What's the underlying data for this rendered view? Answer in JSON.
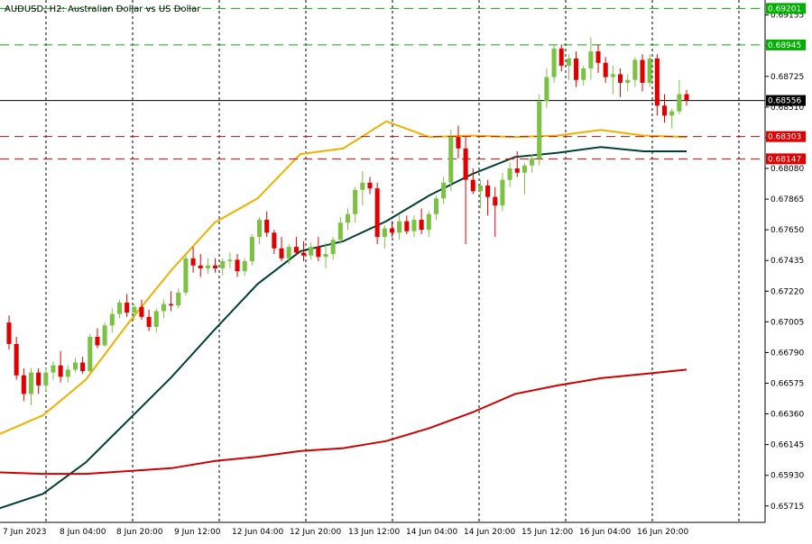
{
  "chart_data": {
    "type": "candlestick",
    "title": "AUDUSD, H2:  Australian Dollar vs US Dollar",
    "ylim": [
      0.656,
      0.6926
    ],
    "y_ticks": [
      "0.69155",
      "0.68940",
      "0.68725",
      "0.68510",
      "0.68295",
      "0.68080",
      "0.67865",
      "0.67650",
      "0.67435",
      "0.67220",
      "0.67005",
      "0.66790",
      "0.66575",
      "0.66360",
      "0.66145",
      "0.65930",
      "0.65715"
    ],
    "x_labels": [
      "7 Jun 2023",
      "8 Jun 04:00",
      "8 Jun 20:00",
      "9 Jun 12:00",
      "12 Jun 04:00",
      "12 Jun 20:00",
      "13 Jun 12:00",
      "14 Jun 04:00",
      "14 Jun 20:00",
      "15 Jun 12:00",
      "16 Jun 04:00",
      "16 Jun 20:00"
    ],
    "horizontal_lines": [
      {
        "value": 0.69201,
        "label": "0.69201",
        "color": "#00b000",
        "style": "dashed"
      },
      {
        "value": 0.68945,
        "label": "0.68945",
        "color": "#00b000",
        "style": "dashed"
      },
      {
        "value": 0.68556,
        "label": "0.68556",
        "color": "#000000",
        "style": "solid"
      },
      {
        "value": 0.68303,
        "label": "0.68303",
        "color": "#e00000",
        "style": "dashed"
      },
      {
        "value": 0.68147,
        "label": "0.68147",
        "color": "#e00000",
        "style": "dashed"
      }
    ],
    "candles": [
      [
        0.67,
        0.6705,
        0.6681,
        0.6685
      ],
      [
        0.6685,
        0.669,
        0.666,
        0.6663
      ],
      [
        0.6663,
        0.6668,
        0.6645,
        0.665
      ],
      [
        0.665,
        0.6668,
        0.6642,
        0.6665
      ],
      [
        0.6665,
        0.6668,
        0.665,
        0.6656
      ],
      [
        0.6656,
        0.6668,
        0.6652,
        0.6665
      ],
      [
        0.6665,
        0.6673,
        0.666,
        0.667
      ],
      [
        0.667,
        0.668,
        0.6658,
        0.6662
      ],
      [
        0.6662,
        0.667,
        0.6658,
        0.6667
      ],
      [
        0.6667,
        0.6675,
        0.6665,
        0.6672
      ],
      [
        0.6672,
        0.6676,
        0.6664,
        0.6666
      ],
      [
        0.6666,
        0.6692,
        0.6665,
        0.669
      ],
      [
        0.669,
        0.6696,
        0.6682,
        0.6684
      ],
      [
        0.6684,
        0.67,
        0.6683,
        0.6698
      ],
      [
        0.6698,
        0.671,
        0.6693,
        0.6706
      ],
      [
        0.6706,
        0.6716,
        0.6703,
        0.6714
      ],
      [
        0.6714,
        0.672,
        0.6704,
        0.6707
      ],
      [
        0.6707,
        0.6713,
        0.6702,
        0.6711
      ],
      [
        0.6711,
        0.6716,
        0.6702,
        0.6704
      ],
      [
        0.6704,
        0.6709,
        0.6694,
        0.6697
      ],
      [
        0.6697,
        0.671,
        0.6693,
        0.6708
      ],
      [
        0.6708,
        0.6716,
        0.6703,
        0.6713
      ],
      [
        0.6713,
        0.6722,
        0.6708,
        0.6712
      ],
      [
        0.6712,
        0.6724,
        0.671,
        0.6721
      ],
      [
        0.6721,
        0.6747,
        0.6719,
        0.6745
      ],
      [
        0.6745,
        0.6753,
        0.6735,
        0.674
      ],
      [
        0.674,
        0.6748,
        0.6732,
        0.6738
      ],
      [
        0.6738,
        0.6745,
        0.6734,
        0.674
      ],
      [
        0.674,
        0.6745,
        0.6735,
        0.6738
      ],
      [
        0.6738,
        0.6745,
        0.6733,
        0.6743
      ],
      [
        0.6743,
        0.6749,
        0.6738,
        0.6744
      ],
      [
        0.6744,
        0.6748,
        0.6732,
        0.6736
      ],
      [
        0.6736,
        0.6745,
        0.6733,
        0.6743
      ],
      [
        0.6743,
        0.6762,
        0.674,
        0.676
      ],
      [
        0.676,
        0.6774,
        0.6755,
        0.6772
      ],
      [
        0.6772,
        0.6778,
        0.676,
        0.6763
      ],
      [
        0.6763,
        0.6765,
        0.6748,
        0.6752
      ],
      [
        0.6752,
        0.676,
        0.6743,
        0.6745
      ],
      [
        0.6745,
        0.6755,
        0.6741,
        0.6753
      ],
      [
        0.6753,
        0.676,
        0.6747,
        0.6749
      ],
      [
        0.6749,
        0.6757,
        0.6743,
        0.6747
      ],
      [
        0.6747,
        0.6756,
        0.6744,
        0.6753
      ],
      [
        0.6753,
        0.676,
        0.6743,
        0.6746
      ],
      [
        0.6746,
        0.6756,
        0.6738,
        0.6748
      ],
      [
        0.6748,
        0.676,
        0.6744,
        0.6758
      ],
      [
        0.6758,
        0.6774,
        0.6755,
        0.677
      ],
      [
        0.677,
        0.678,
        0.6765,
        0.6776
      ],
      [
        0.6776,
        0.6795,
        0.677,
        0.6793
      ],
      [
        0.6793,
        0.6806,
        0.6782,
        0.6798
      ],
      [
        0.6798,
        0.6802,
        0.679,
        0.6794
      ],
      [
        0.6794,
        0.6798,
        0.6755,
        0.676
      ],
      [
        0.676,
        0.6768,
        0.6752,
        0.6766
      ],
      [
        0.6766,
        0.6771,
        0.676,
        0.6763
      ],
      [
        0.6763,
        0.6776,
        0.6758,
        0.6771
      ],
      [
        0.6771,
        0.6775,
        0.6762,
        0.6764
      ],
      [
        0.6764,
        0.6775,
        0.676,
        0.6772
      ],
      [
        0.6772,
        0.678,
        0.6762,
        0.6765
      ],
      [
        0.6765,
        0.6778,
        0.676,
        0.6776
      ],
      [
        0.6776,
        0.6789,
        0.6772,
        0.6787
      ],
      [
        0.6787,
        0.6802,
        0.6783,
        0.6798
      ],
      [
        0.6798,
        0.6835,
        0.6792,
        0.683
      ],
      [
        0.683,
        0.6838,
        0.6815,
        0.6822
      ],
      [
        0.6822,
        0.683,
        0.6755,
        0.68
      ],
      [
        0.68,
        0.6808,
        0.679,
        0.6792
      ],
      [
        0.6792,
        0.68,
        0.678,
        0.6796
      ],
      [
        0.6796,
        0.68,
        0.6775,
        0.6788
      ],
      [
        0.6788,
        0.6795,
        0.676,
        0.6782
      ],
      [
        0.6782,
        0.6805,
        0.6778,
        0.68
      ],
      [
        0.68,
        0.6812,
        0.6795,
        0.6808
      ],
      [
        0.6808,
        0.682,
        0.6802,
        0.6805
      ],
      [
        0.6805,
        0.6812,
        0.679,
        0.681
      ],
      [
        0.681,
        0.6818,
        0.6805,
        0.6815
      ],
      [
        0.6815,
        0.686,
        0.681,
        0.6855
      ],
      [
        0.6855,
        0.6878,
        0.685,
        0.6872
      ],
      [
        0.6872,
        0.6895,
        0.6868,
        0.6892
      ],
      [
        0.6892,
        0.6895,
        0.6876,
        0.688
      ],
      [
        0.688,
        0.6888,
        0.687,
        0.6885
      ],
      [
        0.6885,
        0.689,
        0.6865,
        0.687
      ],
      [
        0.687,
        0.688,
        0.6866,
        0.6878
      ],
      [
        0.6878,
        0.69,
        0.687,
        0.689
      ],
      [
        0.689,
        0.6895,
        0.6875,
        0.6882
      ],
      [
        0.6882,
        0.6886,
        0.6868,
        0.6872
      ],
      [
        0.6872,
        0.688,
        0.686,
        0.6874
      ],
      [
        0.6874,
        0.6878,
        0.6858,
        0.6868
      ],
      [
        0.6868,
        0.6874,
        0.6862,
        0.687
      ],
      [
        0.687,
        0.6886,
        0.6865,
        0.6884
      ],
      [
        0.6884,
        0.6888,
        0.6862,
        0.6868
      ],
      [
        0.6868,
        0.6888,
        0.6865,
        0.6885
      ],
      [
        0.6885,
        0.6888,
        0.6845,
        0.6852
      ],
      [
        0.6852,
        0.686,
        0.684,
        0.6845
      ],
      [
        0.6845,
        0.685,
        0.6836,
        0.6848
      ],
      [
        0.6848,
        0.687,
        0.6846,
        0.686
      ],
      [
        0.686,
        0.6863,
        0.6852,
        0.6856
      ]
    ],
    "series": [
      {
        "color": "#f0b000",
        "values": [
          0.6622,
          0.6635,
          0.666,
          0.67,
          0.6737,
          0.677,
          0.6787,
          0.6818,
          0.6822,
          0.6841,
          0.683,
          0.6831,
          0.683,
          0.6831,
          0.6835,
          0.6831,
          0.683
        ]
      },
      {
        "color": "#004030",
        "values": [
          0.657,
          0.658,
          0.6602,
          0.6632,
          0.6662,
          0.6695,
          0.6727,
          0.675,
          0.6757,
          0.6771,
          0.6789,
          0.6804,
          0.6816,
          0.6819,
          0.6823,
          0.682,
          0.682
        ]
      },
      {
        "color": "#d00000",
        "values": [
          0.6595,
          0.6594,
          0.6594,
          0.6596,
          0.6598,
          0.6603,
          0.6606,
          0.661,
          0.6612,
          0.6617,
          0.6626,
          0.6637,
          0.665,
          0.6656,
          0.6661,
          0.6664,
          0.6667
        ]
      }
    ]
  },
  "colors": {
    "bull": "#7cc242",
    "bear": "#e00000",
    "grid": "#000000"
  }
}
